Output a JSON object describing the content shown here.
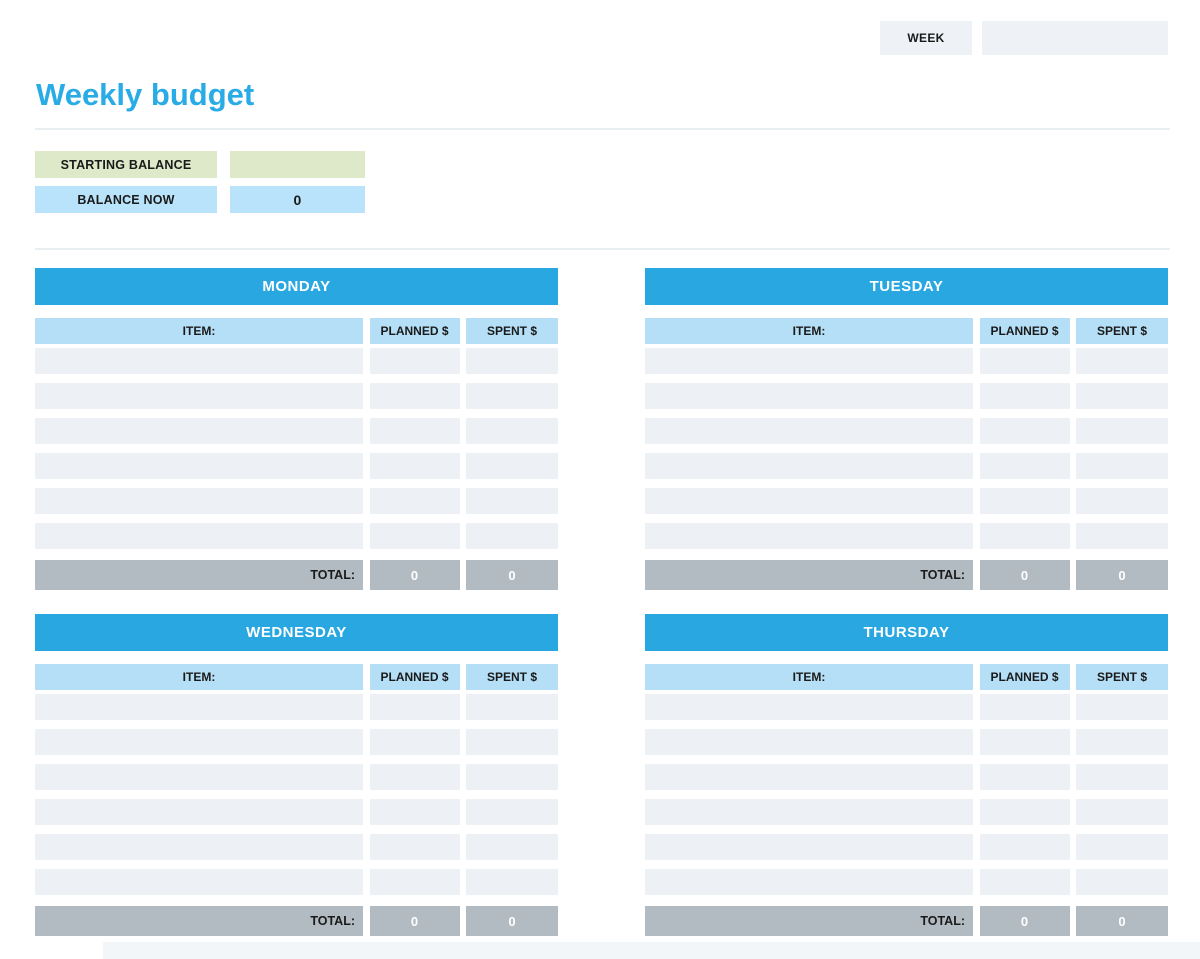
{
  "header": {
    "week_label": "WEEK",
    "week_value": "",
    "title": "Weekly budget"
  },
  "balance": {
    "starting_label": "STARTING BALANCE",
    "starting_value": "",
    "now_label": "BALANCE NOW",
    "now_value": "0"
  },
  "tables": {
    "item_header": "ITEM:",
    "planned_header": "PLANNED $",
    "spent_header": "SPENT $",
    "total_label": "TOTAL:",
    "rows_per_day": 6,
    "days": [
      {
        "name": "MONDAY",
        "planned_total": "0",
        "spent_total": "0"
      },
      {
        "name": "TUESDAY",
        "planned_total": "0",
        "spent_total": "0"
      },
      {
        "name": "WEDNESDAY",
        "planned_total": "0",
        "spent_total": "0"
      },
      {
        "name": "THURSDAY",
        "planned_total": "0",
        "spent_total": "0"
      }
    ]
  },
  "colors": {
    "title_blue": "#29abe6",
    "day_header_blue": "#29a7e0",
    "column_header_blue": "#b5dff6",
    "balance_blue": "#b9e3fa",
    "starting_green": "#dde9c8",
    "row_gray": "#edf1f5",
    "total_gray": "#b2bbc2",
    "week_box_gray": "#eef2f6"
  }
}
